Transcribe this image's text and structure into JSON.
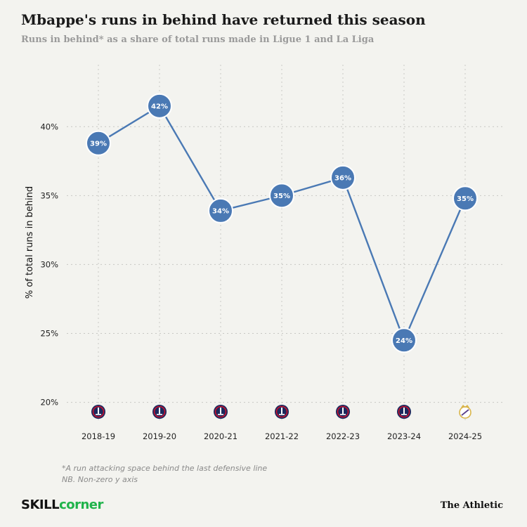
{
  "header": {
    "title": "Mbappe's runs in behind have returned this season",
    "subtitle": "Runs in behind* as a share of total runs made in Ligue 1 and La Liga"
  },
  "footnotes": [
    "*A run attacking space behind the last defensive line",
    "NB. Non-zero y axis"
  ],
  "branding": {
    "left_part1": "SKILL",
    "left_part2": "corner",
    "right": "The Athletic"
  },
  "colors": {
    "line": "#4a79b4",
    "marker": "#4a79b4",
    "background": "#f3f3ef",
    "grid": "#c8c8c4",
    "psg_badge": "#1b2a5e",
    "psg_badge_ring": "#c8102e",
    "real_madrid_badge": "#d9b54a"
  },
  "chart_data": {
    "type": "line",
    "title": "Mbappe's runs in behind have returned this season",
    "subtitle": "Runs in behind* as a share of total runs made in Ligue 1 and La Liga",
    "xlabel": "",
    "ylabel": "% of total runs in behind",
    "categories": [
      "2018-19",
      "2019-20",
      "2020-21",
      "2021-22",
      "2022-23",
      "2023-24",
      "2024-25"
    ],
    "values": [
      38.8,
      41.5,
      33.9,
      35.0,
      36.3,
      24.5,
      34.8
    ],
    "data_labels": [
      "39%",
      "42%",
      "34%",
      "35%",
      "36%",
      "24%",
      "35%"
    ],
    "club_icons": [
      "psg-badge-icon",
      "psg-badge-icon",
      "psg-badge-icon",
      "psg-badge-icon",
      "psg-badge-icon",
      "psg-badge-icon",
      "real-madrid-badge-icon"
    ],
    "ylim": [
      18.5,
      44.5
    ],
    "yticks": [
      20,
      25,
      30,
      35,
      40
    ],
    "ytick_labels": [
      "20%",
      "25%",
      "30%",
      "35%",
      "40%"
    ],
    "grid": true
  }
}
